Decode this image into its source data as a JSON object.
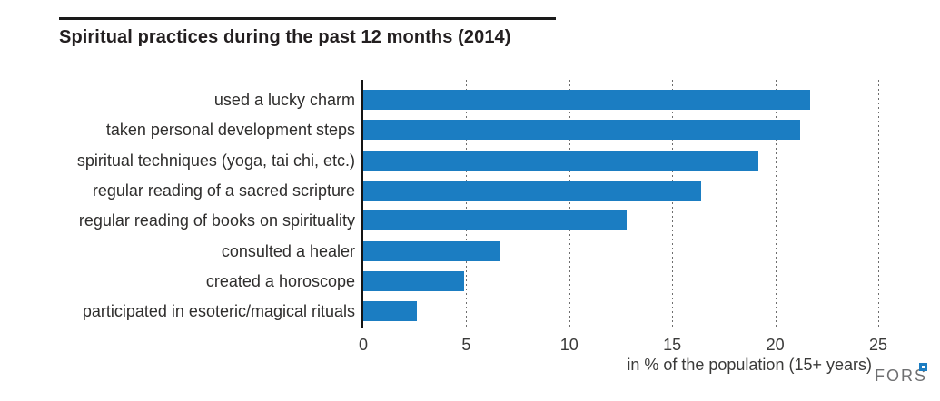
{
  "header": {
    "title": "Spiritual practices during the past 12 months (2014)"
  },
  "chart_data": {
    "type": "bar",
    "orientation": "horizontal",
    "title": "Spiritual practices during the past 12 months (2014)",
    "categories": [
      "used a lucky charm",
      "taken personal development steps",
      "spiritual techniques (yoga, tai chi, etc.)",
      "regular reading of a sacred scripture",
      "regular reading of books on spirituality",
      "consulted a healer",
      "created a horoscope",
      "participated in esoteric/magical rituals"
    ],
    "values": [
      21.7,
      21.2,
      19.2,
      16.4,
      12.8,
      6.6,
      4.9,
      2.6
    ],
    "xlabel": "in % of the population (15+ years)",
    "xlim": [
      0,
      25
    ],
    "xticks": [
      0,
      5,
      10,
      15,
      20,
      25
    ],
    "grid": "vertical-dashed",
    "legend": "none",
    "bar_color": "#1b7dc2",
    "axis_color": "#141414",
    "gridline_color": "#6e6e6e"
  },
  "footer": {
    "logo_text": "FORS"
  }
}
